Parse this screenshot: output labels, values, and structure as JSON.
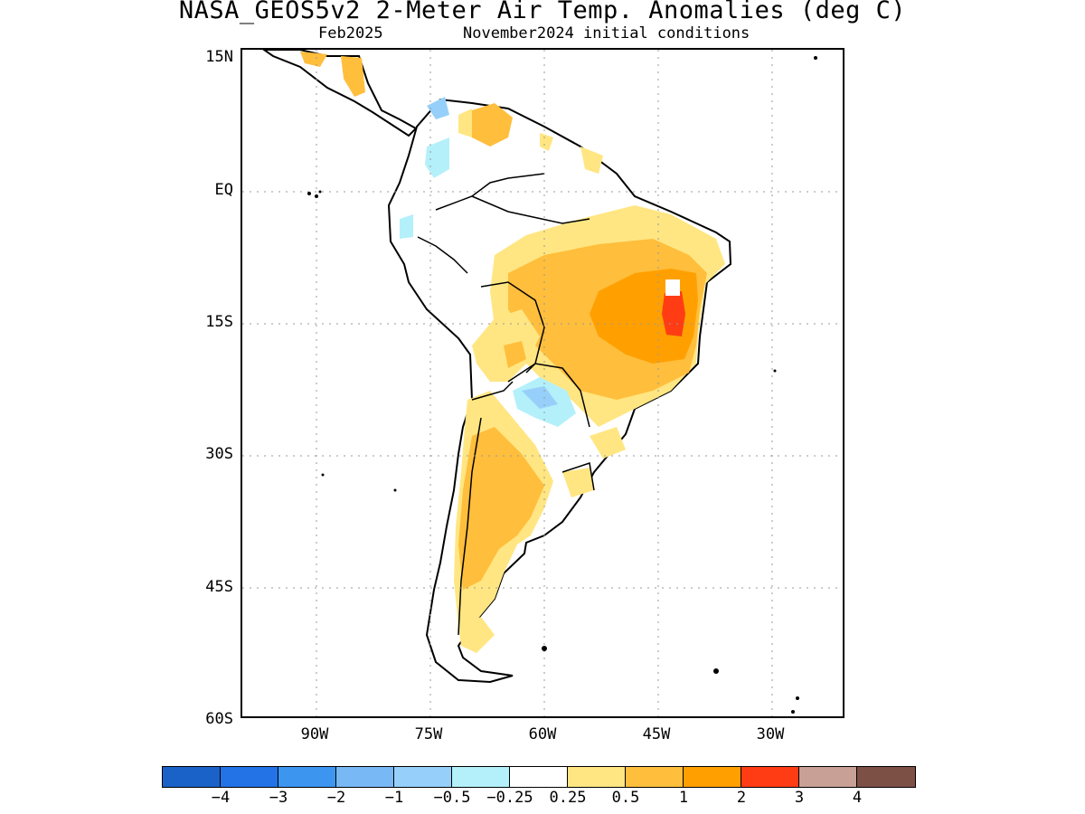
{
  "title": "NASA_GEOS5v2 2-Meter Air Temp. Anomalies (deg C)",
  "subtitle_left": "Feb2025",
  "subtitle_right": "November2024 initial conditions",
  "lat_labels": [
    "15N",
    "EQ",
    "15S",
    "30S",
    "45S",
    "60S"
  ],
  "lon_labels": [
    "90W",
    "75W",
    "60W",
    "45W",
    "30W"
  ],
  "colorbar": {
    "colors": [
      "#1a62c8",
      "#2373e6",
      "#3c96f0",
      "#78b8f5",
      "#96d0fa",
      "#b4f0fa",
      "#ffffff",
      "#ffe682",
      "#ffbe3c",
      "#ffa000",
      "#ff3c14",
      "#c8a096",
      "#7d5046"
    ],
    "labels": [
      "−4",
      "−3",
      "−2",
      "−1",
      "−0.5",
      "−0.25",
      "0.25",
      "0.5",
      "1",
      "2",
      "3",
      "4"
    ]
  },
  "map_legend": {
    "region": "South America",
    "lat_range": [
      "60S",
      "15N"
    ],
    "lon_range": [
      "95W",
      "25W"
    ],
    "max_anomaly_region": "Eastern Brazil (2 to 3 deg C)",
    "cool_regions": [
      "Paraguay/Chaco",
      "Colombia/Ecuador"
    ]
  }
}
